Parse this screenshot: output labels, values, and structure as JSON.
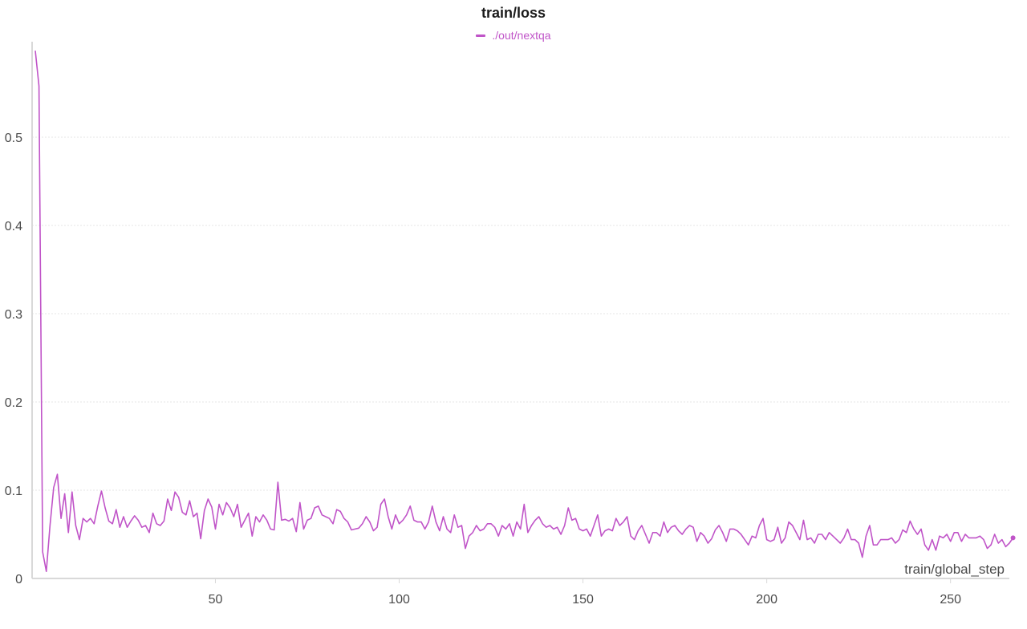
{
  "chart_data": {
    "type": "line",
    "title": "train/loss",
    "xlabel": "train/global_step",
    "ylabel": "",
    "xlim": [
      1,
      266
    ],
    "ylim": [
      0,
      0.6
    ],
    "xticks": [
      50,
      100,
      150,
      200,
      250
    ],
    "yticks": [
      0,
      0.1,
      0.2,
      0.3,
      0.4,
      0.5
    ],
    "ytick_labels": [
      "0",
      "0.1",
      "0.2",
      "0.3",
      "0.4",
      "0.5"
    ],
    "grid": true,
    "legend_position": "top-center",
    "series": [
      {
        "name": "./out/nextqa",
        "color": "#c054c8",
        "x_start": 1,
        "x_step": 1,
        "values": [
          0.598,
          0.558,
          0.03,
          0.008,
          0.06,
          0.103,
          0.118,
          0.068,
          0.096,
          0.052,
          0.098,
          0.06,
          0.044,
          0.068,
          0.064,
          0.068,
          0.062,
          0.082,
          0.099,
          0.08,
          0.065,
          0.062,
          0.078,
          0.058,
          0.07,
          0.058,
          0.065,
          0.071,
          0.066,
          0.058,
          0.06,
          0.052,
          0.074,
          0.062,
          0.06,
          0.065,
          0.09,
          0.077,
          0.098,
          0.092,
          0.075,
          0.072,
          0.088,
          0.07,
          0.074,
          0.045,
          0.077,
          0.09,
          0.081,
          0.056,
          0.084,
          0.072,
          0.086,
          0.08,
          0.07,
          0.084,
          0.058,
          0.066,
          0.074,
          0.048,
          0.07,
          0.064,
          0.072,
          0.066,
          0.056,
          0.055,
          0.109,
          0.066,
          0.067,
          0.065,
          0.068,
          0.053,
          0.086,
          0.056,
          0.066,
          0.068,
          0.08,
          0.082,
          0.072,
          0.07,
          0.068,
          0.062,
          0.078,
          0.076,
          0.068,
          0.064,
          0.055,
          0.056,
          0.057,
          0.062,
          0.07,
          0.064,
          0.054,
          0.058,
          0.084,
          0.09,
          0.07,
          0.056,
          0.072,
          0.062,
          0.066,
          0.072,
          0.082,
          0.066,
          0.064,
          0.064,
          0.056,
          0.064,
          0.082,
          0.064,
          0.054,
          0.07,
          0.056,
          0.052,
          0.072,
          0.058,
          0.06,
          0.034,
          0.048,
          0.052,
          0.06,
          0.054,
          0.056,
          0.062,
          0.062,
          0.058,
          0.048,
          0.06,
          0.056,
          0.062,
          0.048,
          0.064,
          0.056,
          0.084,
          0.052,
          0.06,
          0.066,
          0.07,
          0.062,
          0.058,
          0.06,
          0.056,
          0.058,
          0.05,
          0.06,
          0.08,
          0.066,
          0.068,
          0.056,
          0.054,
          0.056,
          0.048,
          0.06,
          0.072,
          0.048,
          0.054,
          0.056,
          0.054,
          0.068,
          0.06,
          0.064,
          0.07,
          0.048,
          0.044,
          0.054,
          0.06,
          0.05,
          0.04,
          0.052,
          0.052,
          0.048,
          0.064,
          0.052,
          0.058,
          0.06,
          0.054,
          0.05,
          0.056,
          0.06,
          0.058,
          0.042,
          0.052,
          0.048,
          0.04,
          0.045,
          0.055,
          0.06,
          0.052,
          0.042,
          0.056,
          0.056,
          0.054,
          0.05,
          0.044,
          0.038,
          0.048,
          0.046,
          0.06,
          0.068,
          0.044,
          0.042,
          0.044,
          0.058,
          0.04,
          0.046,
          0.064,
          0.06,
          0.052,
          0.044,
          0.066,
          0.044,
          0.046,
          0.04,
          0.05,
          0.05,
          0.044,
          0.052,
          0.048,
          0.044,
          0.04,
          0.046,
          0.056,
          0.044,
          0.044,
          0.04,
          0.024,
          0.048,
          0.06,
          0.038,
          0.038,
          0.044,
          0.044,
          0.044,
          0.046,
          0.04,
          0.044,
          0.055,
          0.052,
          0.065,
          0.056,
          0.05,
          0.056,
          0.038,
          0.032,
          0.044,
          0.032,
          0.048,
          0.046,
          0.05,
          0.042,
          0.052,
          0.052,
          0.042,
          0.05,
          0.046,
          0.046,
          0.046,
          0.048,
          0.044,
          0.034,
          0.038,
          0.05,
          0.04,
          0.044,
          0.036,
          0.04,
          0.046
        ]
      }
    ]
  }
}
